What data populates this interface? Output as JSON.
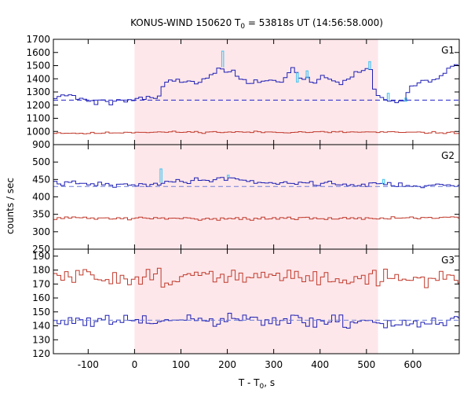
{
  "chart_data": {
    "type": "line",
    "title_prefix": "KONUS-WIND 150620 T",
    "title_sub": "0",
    "title_suffix": " = 53818s UT (14:56:58.000)",
    "ylabel": "counts / sec",
    "xlabel_prefix": "T - T",
    "xlabel_sub": "0",
    "xlabel_suffix": ", s",
    "xlim": [
      -175,
      700
    ],
    "x_ticks": [
      -100,
      0,
      100,
      200,
      300,
      400,
      500,
      600
    ],
    "x_tick_labels": [
      "-100",
      "0",
      "100",
      "200",
      "300",
      "400",
      "500",
      "600"
    ],
    "shaded_interval": [
      0,
      525
    ],
    "colors": {
      "shade": "#fde7ea",
      "soft_band": "#c0392b",
      "mid_band": "#1f1fb4",
      "fine_resolution": "#52c7ee",
      "background_fit_soft": "#2323cc",
      "background_fit_hard": "#6e7fd8",
      "axis": "#000000"
    },
    "panels": [
      {
        "name": "G1",
        "ylim": [
          900,
          1700
        ],
        "y_ticks": [
          900,
          1000,
          1100,
          1200,
          1300,
          1400,
          1500,
          1600,
          1700
        ],
        "y_tick_labels": [
          "900",
          "1000",
          "1100",
          "1200",
          "1300",
          "1400",
          "1500",
          "1600",
          "1700"
        ],
        "show_bottom_tick_label": true,
        "series": [
          {
            "role": "soft_band",
            "style": "step",
            "dt": 8,
            "points": [
              [
                -175,
                990
              ],
              [
                -100,
                985
              ],
              [
                -50,
                990
              ],
              [
                0,
                995
              ],
              [
                100,
                995
              ],
              [
                200,
                995
              ],
              [
                300,
                995
              ],
              [
                400,
                995
              ],
              [
                500,
                995
              ],
              [
                600,
                992
              ],
              [
                700,
                990
              ]
            ],
            "noise": 5,
            "seed": 11
          },
          {
            "role": "mid_band",
            "style": "step",
            "dt": 8,
            "points": [
              [
                -175,
                1270
              ],
              [
                -150,
                1280
              ],
              [
                -120,
                1255
              ],
              [
                -100,
                1235
              ],
              [
                -80,
                1230
              ],
              [
                -60,
                1225
              ],
              [
                -40,
                1225
              ],
              [
                -20,
                1240
              ],
              [
                0,
                1245
              ],
              [
                20,
                1255
              ],
              [
                50,
                1270
              ],
              [
                60,
                1330
              ],
              [
                80,
                1395
              ],
              [
                100,
                1380
              ],
              [
                120,
                1385
              ],
              [
                140,
                1380
              ],
              [
                160,
                1420
              ],
              [
                175,
                1465
              ],
              [
                190,
                1490
              ],
              [
                200,
                1460
              ],
              [
                220,
                1420
              ],
              [
                240,
                1380
              ],
              [
                260,
                1390
              ],
              [
                280,
                1375
              ],
              [
                300,
                1380
              ],
              [
                320,
                1400
              ],
              [
                340,
                1470
              ],
              [
                360,
                1420
              ],
              [
                380,
                1380
              ],
              [
                400,
                1410
              ],
              [
                420,
                1400
              ],
              [
                440,
                1360
              ],
              [
                460,
                1400
              ],
              [
                480,
                1440
              ],
              [
                500,
                1470
              ],
              [
                510,
                1470
              ],
              [
                520,
                1280
              ],
              [
                530,
                1240
              ],
              [
                560,
                1225
              ],
              [
                580,
                1240
              ],
              [
                600,
                1350
              ],
              [
                620,
                1380
              ],
              [
                640,
                1390
              ],
              [
                660,
                1420
              ],
              [
                680,
                1480
              ],
              [
                700,
                1510
              ]
            ],
            "noise": 18,
            "seed": 21
          },
          {
            "role": "fine_resolution",
            "style": "spikes",
            "values": [
              [
                188,
                1610
              ],
              [
                349,
                1375
              ],
              [
                370,
                1460
              ],
              [
                505,
                1530
              ],
              [
                545,
                1290
              ],
              [
                583,
                1230
              ]
            ]
          },
          {
            "role": "background_fit_soft",
            "style": "dashed",
            "points": [
              [
                -175,
                1238
              ],
              [
                700,
                1238
              ]
            ]
          }
        ]
      },
      {
        "name": "G2",
        "ylim": [
          250,
          550
        ],
        "y_ticks": [
          250,
          300,
          350,
          400,
          450,
          500
        ],
        "y_tick_labels": [
          "250",
          "300",
          "350",
          "400",
          "450",
          "500"
        ],
        "show_bottom_tick_label": true,
        "series": [
          {
            "role": "soft_band",
            "style": "step",
            "dt": 8,
            "points": [
              [
                -175,
                340
              ],
              [
                0,
                338
              ],
              [
                200,
                338
              ],
              [
                400,
                338
              ],
              [
                600,
                340
              ],
              [
                700,
                340
              ]
            ],
            "noise": 3,
            "seed": 31
          },
          {
            "role": "mid_band",
            "style": "step",
            "dt": 8,
            "points": [
              [
                -175,
                440
              ],
              [
                -100,
                437
              ],
              [
                0,
                432
              ],
              [
                50,
                440
              ],
              [
                100,
                445
              ],
              [
                150,
                448
              ],
              [
                200,
                455
              ],
              [
                250,
                445
              ],
              [
                300,
                440
              ],
              [
                350,
                440
              ],
              [
                400,
                440
              ],
              [
                450,
                436
              ],
              [
                500,
                435
              ],
              [
                550,
                437
              ],
              [
                600,
                432
              ],
              [
                700,
                432
              ]
            ],
            "noise": 5,
            "seed": 41
          },
          {
            "role": "fine_resolution",
            "style": "spikes",
            "values": [
              [
                55,
                480
              ],
              [
                200,
                462
              ],
              [
                535,
                450
              ]
            ]
          },
          {
            "role": "background_fit_hard",
            "style": "dashed",
            "points": [
              [
                -175,
                430
              ],
              [
                700,
                430
              ]
            ]
          }
        ]
      },
      {
        "name": "G3",
        "ylim": [
          120,
          195
        ],
        "y_ticks": [
          120,
          130,
          140,
          150,
          160,
          170,
          180,
          190
        ],
        "y_tick_labels": [
          "120",
          "130",
          "140",
          "150",
          "160",
          "170",
          "180",
          "190"
        ],
        "show_bottom_tick_label": true,
        "series": [
          {
            "role": "soft_band",
            "style": "step",
            "dt": 8,
            "points": [
              [
                -175,
                175
              ],
              [
                0,
                175
              ],
              [
                200,
                175
              ],
              [
                400,
                175
              ],
              [
                600,
                174
              ],
              [
                700,
                174
              ]
            ],
            "noise": 4.5,
            "seed": 51
          },
          {
            "role": "mid_band",
            "style": "step",
            "dt": 8,
            "points": [
              [
                -175,
                143
              ],
              [
                0,
                143
              ],
              [
                200,
                144
              ],
              [
                400,
                143
              ],
              [
                600,
                142
              ],
              [
                700,
                142
              ]
            ],
            "noise": 3.5,
            "seed": 61
          },
          {
            "role": "background_fit_hard",
            "style": "dashed",
            "points": [
              [
                -175,
                144
              ],
              [
                700,
                144
              ]
            ]
          }
        ]
      }
    ]
  }
}
